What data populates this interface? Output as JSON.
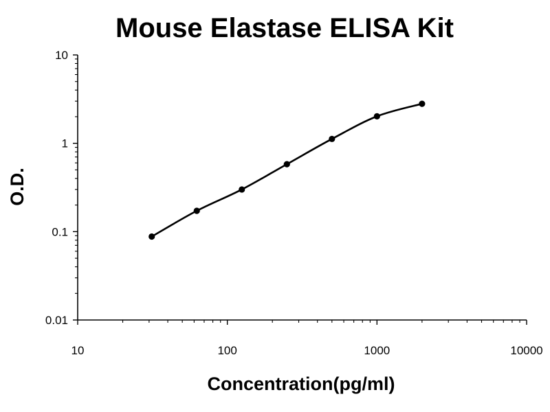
{
  "chart_data": {
    "type": "scatter",
    "title": "Mouse Elastase ELISA Kit",
    "xlabel": "Concentration(pg/ml)",
    "ylabel": "O.D.",
    "x_scale": "log",
    "y_scale": "log",
    "xlim": [
      10,
      10000
    ],
    "ylim": [
      0.01,
      10
    ],
    "x_ticks": [
      "10",
      "100",
      "1000",
      "10000"
    ],
    "y_ticks": [
      "0.01",
      "0.1",
      "1",
      "10"
    ],
    "grid": false,
    "legend": "none",
    "fit_line": "smooth curve through points",
    "series": [
      {
        "x": [
          31.25,
          62.5,
          125,
          250,
          500,
          1000,
          2000
        ],
        "y": [
          0.088,
          0.172,
          0.3,
          0.58,
          1.12,
          2.02,
          2.8
        ]
      }
    ],
    "color": "#000000"
  }
}
